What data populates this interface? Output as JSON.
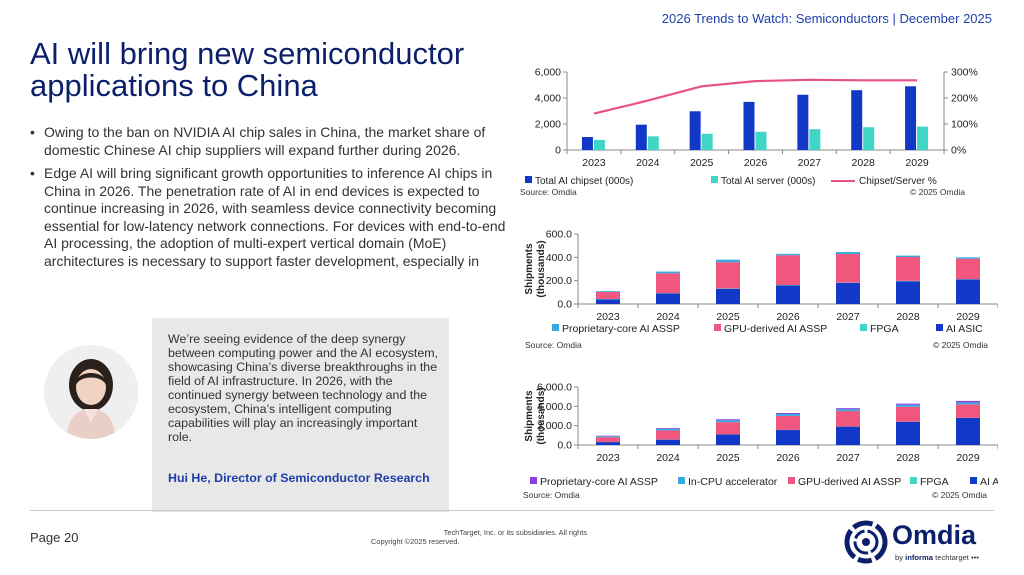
{
  "header": {
    "text": "2026 Trends to Watch: Semiconductors | December 2025"
  },
  "title": "AI will bring new semiconductor applications to China",
  "bullets": [
    "Owing to the ban on NVIDIA AI chip sales in China, the market share of domestic Chinese AI chip suppliers will expand further during 2026.",
    "Edge AI will bring significant growth opportunities to inference AI chips in China in 2026. The penetration rate of AI in end devices is expected to continue increasing in 2026, with seamless device connectivity becoming essential for low-latency network connections. For devices with end-to-end AI processing, the adoption of multi-expert vertical domain (MoE) architectures is necessary to support faster development, especially in"
  ],
  "bullet_char": "•",
  "quote": {
    "text": "We’re seeing evidence of the deep synergy between computing power and the AI ecosystem, showcasing China’s diverse breakthroughs in the field of AI infrastructure. In 2026, with the continued synergy between technology and the ecosystem, China’s intelligent computing capabilities will play an increasingly important role.",
    "author": "Hui He, Director of Semiconductor Research"
  },
  "footer": {
    "page": "Page 20",
    "copyright_line1": "TechTarget, Inc. or its subsidiaries. All rights",
    "copyright_line2": "Copyright ©2025 reserved."
  },
  "logo": {
    "word": "Omdia",
    "sub_prefix": "by ",
    "sub_bold": "informa",
    "sub_rest": " techtarget •••"
  },
  "colors": {
    "navy": "#0b1f6b",
    "blue": "#1f3fa8",
    "teal": "#3fd6c6",
    "pink": "#f0567e",
    "light_blue": "#38a8e0",
    "purple": "#8a3fe0",
    "ai_blue": "#1238c8"
  },
  "chart_data": [
    {
      "type": "bar",
      "categories": [
        "2023",
        "2024",
        "2025",
        "2026",
        "2027",
        "2028",
        "2029"
      ],
      "series": [
        {
          "name": "Total AI chipset (000s)",
          "color": "#1238c8",
          "values": [
            1000,
            1950,
            2980,
            3700,
            4250,
            4600,
            4900
          ]
        },
        {
          "name": "Total AI server (000s)",
          "color": "#3fd6c6",
          "values": [
            780,
            1050,
            1250,
            1400,
            1600,
            1750,
            1800
          ]
        },
        {
          "name": "Chipset/Server %",
          "color": "#e8508a",
          "kind": "line",
          "axis": "right",
          "values": [
            140,
            190,
            245,
            265,
            270,
            268,
            268
          ]
        }
      ],
      "y_ticks": [
        "0",
        "2,000",
        "4,000",
        "6,000"
      ],
      "y2_ticks": [
        "0%",
        "100%",
        "200%",
        "300%"
      ],
      "ylim": [
        0,
        6000
      ],
      "y2lim": [
        0,
        300
      ],
      "source": "Source: Omdia",
      "copyright": "© 2025 Omdia"
    },
    {
      "type": "bar",
      "stacked": true,
      "categories": [
        "2023",
        "2024",
        "2025",
        "2026",
        "2027",
        "2028",
        "2029"
      ],
      "series": [
        {
          "name": "AI ASIC",
          "color": "#1238c8",
          "values": [
            40,
            90,
            130,
            160,
            180,
            195,
            210
          ]
        },
        {
          "name": "FPGA",
          "color": "#3fd6c6",
          "values": [
            3,
            3,
            3,
            3,
            3,
            3,
            3
          ]
        },
        {
          "name": "GPU-derived AI ASSP",
          "color": "#f0567e",
          "values": [
            60,
            170,
            225,
            255,
            245,
            205,
            175
          ]
        },
        {
          "name": "Proprietary-core AI ASSP",
          "color": "#38a8e0",
          "values": [
            7,
            15,
            22,
            12,
            17,
            12,
            12
          ]
        }
      ],
      "legend_order": [
        "Proprietary-core AI ASSP",
        "GPU-derived AI ASSP",
        "FPGA",
        "AI ASIC"
      ],
      "ylabel": "Shipments (thousands)",
      "y_ticks": [
        "0.0",
        "200.0",
        "400.0",
        "600.0"
      ],
      "ylim": [
        0,
        600
      ],
      "source": "Source: Omdia",
      "copyright": "© 2025 Omdia"
    },
    {
      "type": "bar",
      "stacked": true,
      "categories": [
        "2023",
        "2024",
        "2025",
        "2026",
        "2027",
        "2028",
        "2029"
      ],
      "series": [
        {
          "name": "AI ASIC",
          "color": "#1238c8",
          "values": [
            300,
            550,
            1100,
            1550,
            1900,
            2400,
            2800
          ]
        },
        {
          "name": "FPGA",
          "color": "#3fd6c6",
          "values": [
            10,
            10,
            10,
            10,
            10,
            10,
            10
          ]
        },
        {
          "name": "GPU-derived AI ASSP",
          "color": "#f0567e",
          "values": [
            500,
            950,
            1250,
            1450,
            1600,
            1550,
            1400
          ]
        },
        {
          "name": "In-CPU accelerator",
          "color": "#38a8e0",
          "values": [
            100,
            150,
            200,
            200,
            200,
            200,
            200
          ]
        },
        {
          "name": "Proprietary-core AI ASSP",
          "color": "#8a3fe0",
          "values": [
            50,
            80,
            100,
            100,
            100,
            120,
            150
          ]
        }
      ],
      "legend_order": [
        "Proprietary-core AI ASSP",
        "In-CPU accelerator",
        "GPU-derived AI ASSP",
        "FPGA",
        "AI ASIC"
      ],
      "ylabel": "Shipments (thousands)",
      "y_ticks": [
        "0.0",
        "2,000.0",
        "4,000.0",
        "6,000.0"
      ],
      "ylim": [
        0,
        6000
      ],
      "source": "Source: Omdia",
      "copyright": "© 2025 Omdia"
    }
  ]
}
